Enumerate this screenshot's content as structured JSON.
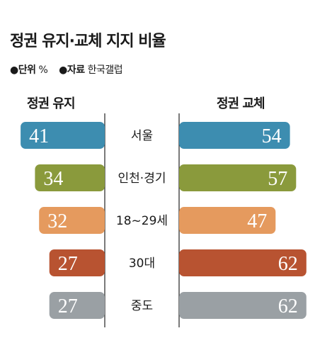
{
  "title": "정권 유지·교체 지지 비율",
  "meta": {
    "unit_key": "●단위",
    "unit_value": "%",
    "source_key": "●자료",
    "source_value": "한국갤럽"
  },
  "chart_data": {
    "type": "bar",
    "title": "정권 유지·교체 지지 비율",
    "categories": [
      "서울",
      "인천·경기",
      "18~29세",
      "30대",
      "중도"
    ],
    "series": [
      {
        "name": "정권 유지",
        "values": [
          41,
          34,
          32,
          27,
          27
        ]
      },
      {
        "name": "정권 교체",
        "values": [
          54,
          57,
          47,
          62,
          62
        ]
      }
    ],
    "colors": [
      "#3d8db0",
      "#8a9a3c",
      "#e59a5e",
      "#b85331",
      "#9aa0a4"
    ],
    "legend_position": "top",
    "grid": false
  }
}
